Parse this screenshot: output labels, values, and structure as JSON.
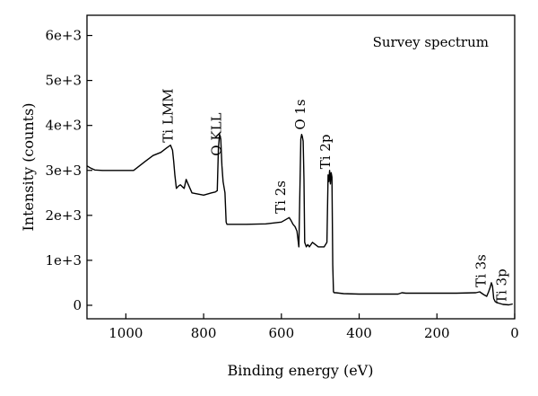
{
  "chart_data": {
    "type": "line",
    "title": "",
    "inset_label": "Survey spectrum",
    "xlabel": "Binding energy (eV)",
    "ylabel": "Intensity (counts)",
    "xlim": [
      1100,
      0
    ],
    "ylim": [
      -300,
      6450
    ],
    "x_reversed": true,
    "grid": false,
    "x_ticks": [
      1000,
      800,
      600,
      400,
      200,
      0
    ],
    "x_tick_labels": [
      "1000",
      "800",
      "600",
      "400",
      "200",
      "0"
    ],
    "y_ticks": [
      0,
      1000,
      2000,
      3000,
      4000,
      5000,
      6000
    ],
    "y_tick_labels": [
      "0",
      "1e+3",
      "2e+3",
      "3e+3",
      "4e+3",
      "5e+3",
      "6e+3"
    ],
    "series": [
      {
        "x": [
          1100,
          1090,
          1080,
          1060,
          1020,
          980,
          950,
          930,
          910,
          895,
          885,
          880,
          877,
          874,
          870,
          865,
          860,
          855,
          850,
          845,
          840,
          835,
          830,
          800,
          780,
          770,
          765,
          762,
          759,
          756,
          753,
          750,
          745,
          742,
          740,
          720,
          690,
          640,
          600,
          590,
          580,
          575,
          570,
          565,
          560,
          555,
          550,
          548,
          546,
          544,
          542,
          540,
          538,
          536,
          532,
          528,
          520,
          505,
          490,
          483,
          480,
          478,
          476,
          474,
          472,
          470,
          468,
          466,
          464,
          460,
          440,
          400,
          300,
          290,
          280,
          250,
          200,
          150,
          100,
          90,
          80,
          72,
          67,
          63,
          60,
          57,
          54,
          50,
          42,
          30,
          15,
          5
        ],
        "y": [
          3100,
          3050,
          3010,
          3000,
          3000,
          3000,
          3200,
          3330,
          3400,
          3500,
          3560,
          3450,
          3200,
          2900,
          2600,
          2650,
          2680,
          2640,
          2600,
          2800,
          2700,
          2600,
          2500,
          2450,
          2500,
          2520,
          2550,
          3500,
          3800,
          3700,
          3100,
          2750,
          2500,
          1850,
          1800,
          1800,
          1800,
          1810,
          1850,
          1900,
          1950,
          1880,
          1800,
          1750,
          1650,
          1300,
          3700,
          3800,
          3750,
          3650,
          2800,
          1400,
          1350,
          1300,
          1350,
          1300,
          1400,
          1300,
          1300,
          1400,
          2900,
          2750,
          3000,
          2700,
          2950,
          2850,
          900,
          300,
          280,
          280,
          260,
          250,
          250,
          280,
          270,
          270,
          270,
          270,
          280,
          300,
          240,
          200,
          300,
          400,
          500,
          420,
          150,
          80,
          50,
          20,
          10,
          30
        ]
      }
    ],
    "annotations": [
      {
        "text": "Ti LMM",
        "x": 880,
        "y": 3620
      },
      {
        "text": "O KLL",
        "x": 755,
        "y": 3320
      },
      {
        "text": "Ti 2s",
        "x": 590,
        "y": 2040
      },
      {
        "text": "O 1s",
        "x": 540,
        "y": 3900
      },
      {
        "text": "Ti 2p",
        "x": 475,
        "y": 3030
      },
      {
        "text": "Ti 3s",
        "x": 75,
        "y": 400
      },
      {
        "text": "Ti 3p",
        "x": 22,
        "y": 40
      }
    ]
  }
}
